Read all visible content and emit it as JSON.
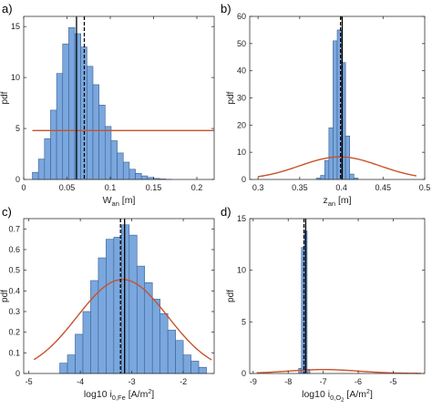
{
  "chart_data": [
    {
      "panel": "a)",
      "type": "histogram",
      "xlabel": "W",
      "xlabel_sub": "an",
      "xlabel_unit": " [m]",
      "ylabel": "pdf",
      "xlim": [
        0,
        0.22
      ],
      "ylim": [
        0,
        16
      ],
      "xticks": [
        0,
        0.05,
        0.1,
        0.15,
        0.2
      ],
      "xticklabels": [
        "0",
        "0.05",
        "0.1",
        "0.15",
        "0.2"
      ],
      "yticks": [
        0,
        5,
        10,
        15
      ],
      "yticklabels": [
        "0",
        "5",
        "10",
        "15"
      ],
      "bins": {
        "edges": [
          0.01,
          0.017,
          0.024,
          0.031,
          0.038,
          0.045,
          0.052,
          0.059,
          0.066,
          0.073,
          0.08,
          0.087,
          0.094,
          0.101,
          0.108,
          0.115,
          0.122,
          0.129,
          0.136,
          0.143,
          0.15,
          0.157,
          0.164,
          0.171
        ],
        "values": [
          0.7,
          2.0,
          4.0,
          6.8,
          10.4,
          13.3,
          14.9,
          14.3,
          13.0,
          11.1,
          9.3,
          7.3,
          5.2,
          3.8,
          2.6,
          1.7,
          1.0,
          0.6,
          0.35,
          0.2,
          0.1,
          0.05,
          0.02
        ]
      },
      "curve": {
        "x": [
          0.01,
          0.22
        ],
        "y": [
          4.8,
          4.8
        ]
      },
      "vlines": [
        {
          "x": 0.061,
          "style": "solid"
        },
        {
          "x": 0.07,
          "style": "dashed"
        }
      ]
    },
    {
      "panel": "b)",
      "type": "histogram",
      "xlabel": "z",
      "xlabel_sub": "an",
      "xlabel_unit": " [m]",
      "ylabel": "pdf",
      "xlim": [
        0.29,
        0.5
      ],
      "ylim": [
        0,
        60
      ],
      "xticks": [
        0.3,
        0.35,
        0.4,
        0.45,
        0.5
      ],
      "xticklabels": [
        "0.3",
        "0.35",
        "0.4",
        "0.45",
        "0.5"
      ],
      "yticks": [
        0,
        10,
        20,
        30,
        40,
        50,
        60
      ],
      "yticklabels": [
        "0",
        "10",
        "20",
        "30",
        "40",
        "50",
        "60"
      ],
      "bins": {
        "edges": [
          0.37,
          0.375,
          0.38,
          0.385,
          0.39,
          0.395,
          0.4,
          0.405,
          0.41,
          0.415,
          0.42
        ],
        "values": [
          0.5,
          1.5,
          7.0,
          19.0,
          51.0,
          55.0,
          43.0,
          16.0,
          2.0,
          0.5
        ]
      },
      "curve": {
        "type": "gaussian",
        "mean": 0.398,
        "sd": 0.048,
        "peak": 8.3,
        "x_range": [
          0.3,
          0.49
        ]
      },
      "vlines": [
        {
          "x": 0.399,
          "style": "dashed"
        },
        {
          "x": 0.401,
          "style": "solid"
        }
      ]
    },
    {
      "panel": "c)",
      "type": "histogram",
      "xlabel": "log10 i",
      "xlabel_sub": "0,Fe",
      "xlabel_unit": " [A/m",
      "xlabel_sup": "2",
      "xlabel_end": "]",
      "ylabel": "pdf",
      "xlim": [
        -5.1,
        -1.4
      ],
      "ylim": [
        0,
        0.75
      ],
      "xticks": [
        -5,
        -4,
        -3,
        -2
      ],
      "xticklabels": [
        "-5",
        "-4",
        "-3",
        "-2"
      ],
      "yticks": [
        0,
        0.1,
        0.2,
        0.3,
        0.4,
        0.5,
        0.6,
        0.7
      ],
      "yticklabels": [
        "0",
        "0.1",
        "0.2",
        "0.3",
        "0.4",
        "0.5",
        "0.6",
        "0.7"
      ],
      "bins": {
        "edges": [
          -4.4,
          -4.25,
          -4.1,
          -3.95,
          -3.8,
          -3.65,
          -3.5,
          -3.35,
          -3.2,
          -3.05,
          -2.9,
          -2.75,
          -2.6,
          -2.45,
          -2.3,
          -2.15,
          -2.0,
          -1.85,
          -1.7,
          -1.55
        ],
        "values": [
          0.05,
          0.09,
          0.19,
          0.3,
          0.45,
          0.56,
          0.65,
          0.66,
          0.72,
          0.67,
          0.52,
          0.44,
          0.36,
          0.29,
          0.21,
          0.16,
          0.09,
          0.06,
          0.03
        ]
      },
      "curve": {
        "type": "gaussian",
        "mean": -3.18,
        "sd": 0.88,
        "peak": 0.455,
        "x_range": [
          -4.9,
          -1.45
        ]
      },
      "vlines": [
        {
          "x": -3.22,
          "style": "dashed"
        },
        {
          "x": -3.14,
          "style": "solid"
        }
      ]
    },
    {
      "panel": "d)",
      "type": "histogram",
      "xlabel": "log10 i",
      "xlabel_sub": "0,O",
      "xlabel_sub2": "2",
      "xlabel_unit": " [A/m",
      "xlabel_sup": "2",
      "xlabel_end": "]",
      "ylabel": "pdf",
      "xlim": [
        -9.1,
        -4.1
      ],
      "ylim": [
        0,
        15
      ],
      "xticks": [
        -9,
        -8,
        -7,
        -6,
        -5
      ],
      "xticklabels": [
        "-9",
        "-8",
        "-7",
        "-6",
        "-5"
      ],
      "yticks": [
        0,
        5,
        10,
        15
      ],
      "yticklabels": [
        "0",
        "5",
        "10",
        "15"
      ],
      "bins": {
        "edges": [
          -7.7,
          -7.62,
          -7.54,
          -7.46,
          -7.38
        ],
        "values": [
          0.5,
          12.2,
          13.8,
          0.4
        ]
      },
      "curve": {
        "type": "gaussian",
        "mean": -7.0,
        "sd": 1.0,
        "peak": 0.38,
        "x_range": [
          -8.9,
          -4.2
        ]
      },
      "vlines": [
        {
          "x": -7.55,
          "style": "dashed"
        },
        {
          "x": -7.5,
          "style": "solid"
        }
      ]
    }
  ],
  "colors": {
    "bar_fill": "#7aa7dd",
    "bar_stroke": "#3a5f94",
    "curve": "#c8532a",
    "axis": "#333333",
    "vline": "#000000"
  }
}
